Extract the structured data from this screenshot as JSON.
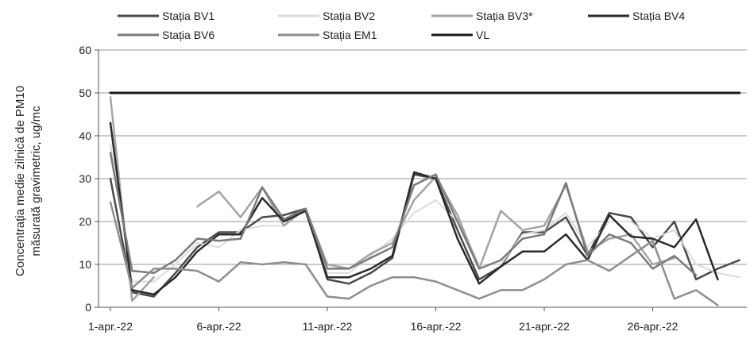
{
  "chart_data": {
    "type": "line",
    "title": "",
    "xlabel": "",
    "ylabel_line1": "Concentrația medie zilnică de PM10",
    "ylabel_line2": "măsurată gravimetric, ug/mc",
    "ylim": [
      0,
      60
    ],
    "yticks": [
      0,
      10,
      20,
      30,
      40,
      50,
      60
    ],
    "x": [
      "1-apr.-22",
      "2-apr.-22",
      "3-apr.-22",
      "4-apr.-22",
      "5-apr.-22",
      "6-apr.-22",
      "7-apr.-22",
      "8-apr.-22",
      "9-apr.-22",
      "10-apr.-22",
      "11-apr.-22",
      "12-apr.-22",
      "13-apr.-22",
      "14-apr.-22",
      "15-apr.-22",
      "16-apr.-22",
      "17-apr.-22",
      "18-apr.-22",
      "19-apr.-22",
      "20-apr.-22",
      "21-apr.-22",
      "22-apr.-22",
      "23-apr.-22",
      "24-apr.-22",
      "25-apr.-22",
      "26-apr.-22",
      "27-apr.-22",
      "28-apr.-22",
      "29-apr.-22",
      "30-apr.-22"
    ],
    "x_tick_labels": [
      "1-apr.-22",
      "6-apr.-22",
      "11-apr.-22",
      "16-apr.-22",
      "21-apr.-22",
      "26-apr.-22"
    ],
    "x_tick_indices": [
      0,
      5,
      10,
      15,
      20,
      25
    ],
    "grid": true,
    "legend_placement": "top",
    "series": [
      {
        "name": "Stația BV1",
        "color": "#4a4a4a",
        "width": 2.5,
        "values": [
          30,
          3.5,
          2.5,
          8,
          14,
          17.5,
          17.5,
          21,
          21.5,
          23,
          6.5,
          5.5,
          8,
          11.5,
          31,
          30,
          18,
          6.5,
          9.5,
          17.5,
          17.5,
          21,
          12,
          22,
          21,
          14,
          20,
          6.5,
          9,
          11
        ]
      },
      {
        "name": "Stația BV2",
        "color": "#dcdcdc",
        "width": 2,
        "values": [
          38,
          6,
          6,
          10,
          15,
          14,
          18,
          19,
          19,
          23,
          8,
          8,
          12,
          16,
          22,
          25,
          20,
          10,
          10,
          17,
          18,
          22,
          14,
          20,
          20,
          16,
          18,
          10,
          8,
          7
        ]
      },
      {
        "name": "Stația BV3*",
        "color": "#a4a4a4",
        "width": 2.5,
        "values": [
          49,
          1.5,
          7,
          null,
          23.5,
          27,
          21,
          28,
          19,
          23,
          10,
          9,
          12.5,
          15,
          25,
          30.5,
          21.5,
          9,
          22.5,
          18,
          19,
          28.5,
          13,
          16,
          17,
          10,
          11.5,
          null,
          null,
          null
        ]
      },
      {
        "name": "Stația BV4",
        "color": "#2a2a2a",
        "width": 2.5,
        "values": [
          43,
          4,
          3,
          7,
          13,
          17,
          17,
          25.5,
          20,
          22.5,
          7,
          7,
          9,
          12,
          31.5,
          30,
          16,
          5.5,
          9.5,
          13,
          13,
          17,
          11,
          21.5,
          16.5,
          16,
          14,
          20.5,
          6.5,
          null
        ]
      },
      {
        "name": "Stația BV6",
        "color": "#7a7a7a",
        "width": 2.5,
        "values": [
          36,
          8.5,
          8,
          11,
          16,
          15.5,
          16,
          28,
          20.5,
          23,
          9,
          9,
          11.5,
          14,
          28.5,
          31,
          20,
          9,
          11,
          16,
          17,
          29,
          12,
          17,
          15,
          9,
          12,
          7.5,
          null,
          null
        ]
      },
      {
        "name": "Stația EM1",
        "color": "#8e8e8e",
        "width": 2.5,
        "values": [
          24.5,
          4.5,
          9,
          9,
          8.5,
          6,
          10.5,
          10,
          10.5,
          10,
          2.5,
          2,
          5,
          7,
          7,
          6,
          4,
          2,
          4,
          4,
          6.5,
          10,
          11,
          8.5,
          12,
          15.5,
          2,
          4,
          0.5,
          null
        ]
      },
      {
        "name": "VL",
        "color": "#1a1a1a",
        "width": 3,
        "values": [
          50,
          50,
          50,
          50,
          50,
          50,
          50,
          50,
          50,
          50,
          50,
          50,
          50,
          50,
          50,
          50,
          50,
          50,
          50,
          50,
          50,
          50,
          50,
          50,
          50,
          50,
          50,
          50,
          50,
          50
        ]
      }
    ]
  }
}
